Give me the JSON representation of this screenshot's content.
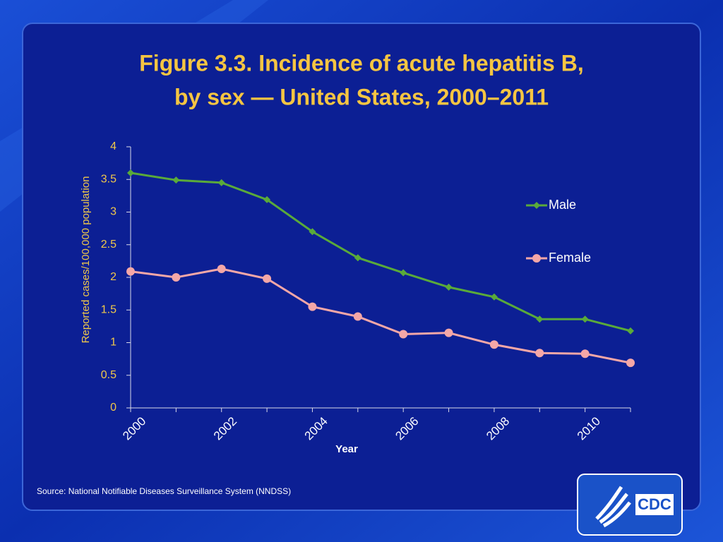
{
  "chart_data": {
    "type": "line",
    "title": [
      "Figure 3.3. Incidence of acute hepatitis B,",
      "by sex — United States, 2000–2011"
    ],
    "x_label": "Year",
    "y_label": "Reported cases/100,000 population",
    "x": [
      2000,
      2001,
      2002,
      2003,
      2004,
      2005,
      2006,
      2007,
      2008,
      2009,
      2010,
      2011
    ],
    "xlim": [
      2000,
      2011
    ],
    "xticks": [
      2000,
      2002,
      2004,
      2006,
      2008,
      2010
    ],
    "ylim": [
      0,
      4
    ],
    "yticks": [
      0,
      0.5,
      1,
      1.5,
      2,
      2.5,
      3,
      3.5,
      4
    ],
    "legend": "right",
    "series": [
      {
        "name": "Male",
        "color": "#5aaa3a",
        "marker": "diamond",
        "values": [
          3.6,
          3.49,
          3.45,
          3.19,
          2.7,
          2.3,
          2.07,
          1.85,
          1.7,
          1.36,
          1.36,
          1.18
        ]
      },
      {
        "name": "Female",
        "color": "#f4a7a7",
        "marker": "circle",
        "values": [
          2.09,
          2.0,
          2.13,
          1.98,
          1.55,
          1.4,
          1.13,
          1.15,
          0.97,
          0.84,
          0.83,
          0.69
        ]
      }
    ]
  },
  "source": "Source: National Notifiable Diseases Surveillance System (NNDSS)",
  "logo_text": "CDC"
}
